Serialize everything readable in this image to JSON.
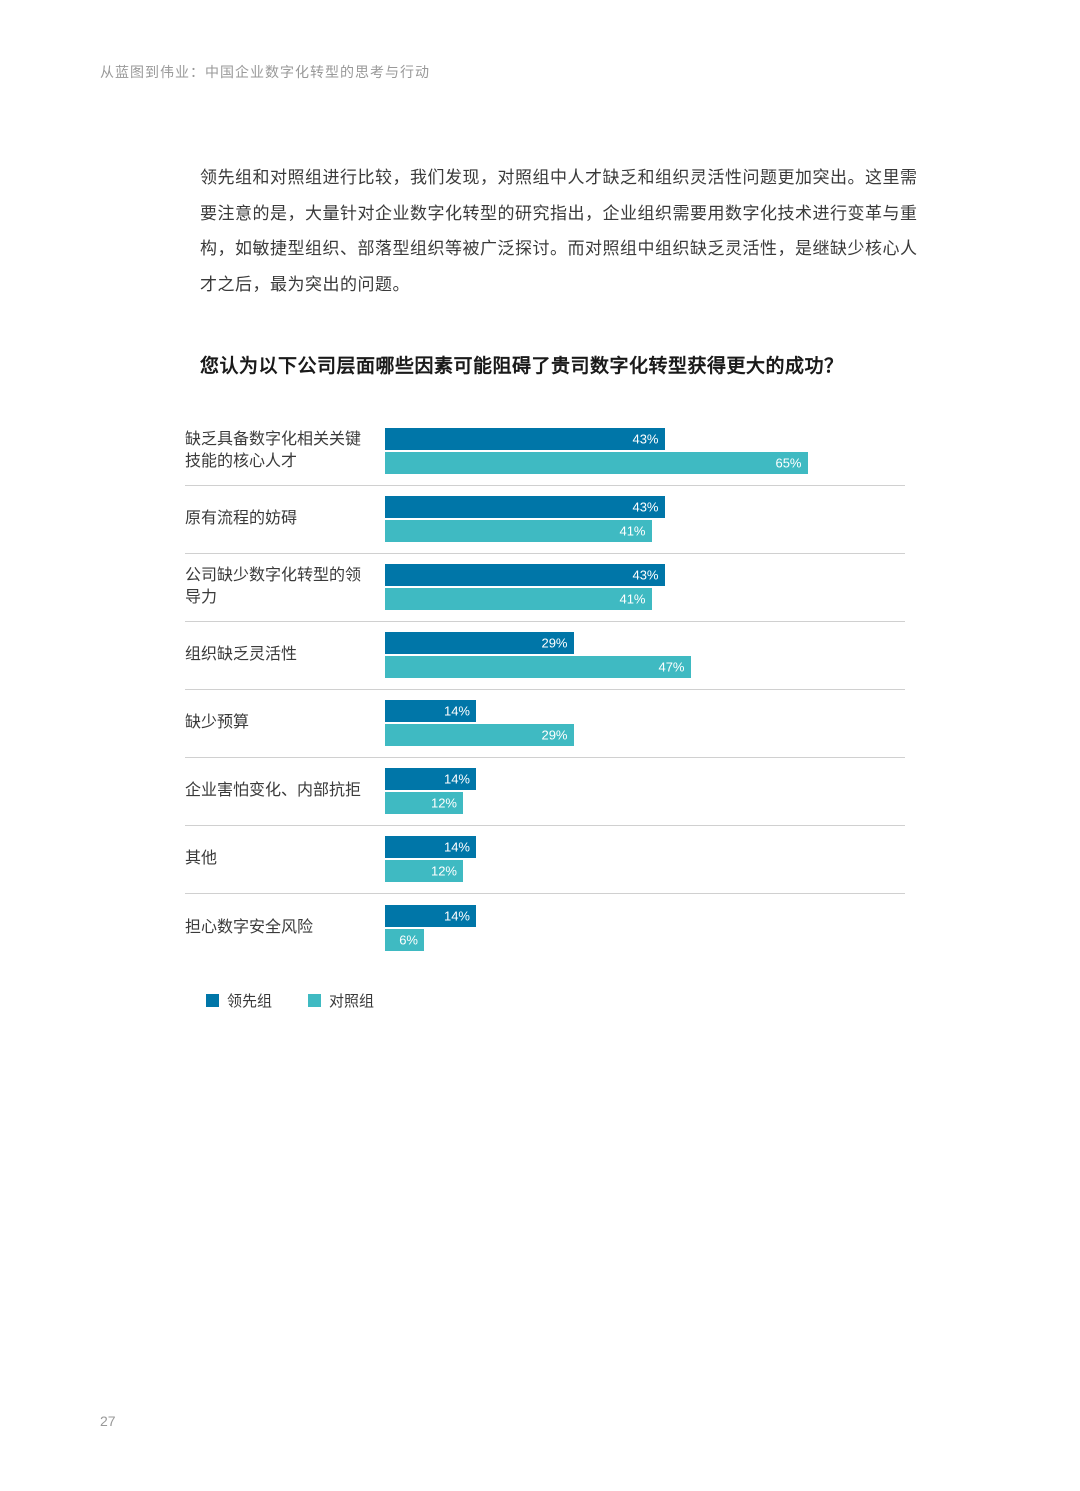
{
  "header": "从蓝图到伟业：中国企业数字化转型的思考与行动",
  "paragraph": "领先组和对照组进行比较，我们发现，对照组中人才缺乏和组织灵活性问题更加突出。这里需要注意的是，大量针对企业数字化转型的研究指出，企业组织需要用数字化技术进行变革与重构，如敏捷型组织、部落型组织等被广泛探讨。而对照组中组织缺乏灵活性，是继缺少核心人才之后，最为突出的问题。",
  "chart": {
    "type": "bar",
    "title": "您认为以下公司层面哪些因素可能阻碍了贵司数字化转型获得更大的成功？",
    "max_value": 80,
    "series": [
      {
        "name": "领先组",
        "color": "#0076a8"
      },
      {
        "name": "对照组",
        "color": "#3fbac2"
      }
    ],
    "rows": [
      {
        "label": "缺乏具备数字化相关关键技能的核心人才",
        "values": [
          43,
          65
        ]
      },
      {
        "label": "原有流程的妨碍",
        "values": [
          43,
          41
        ]
      },
      {
        "label": "公司缺少数字化转型的领导力",
        "values": [
          43,
          41
        ]
      },
      {
        "label": "组织缺乏灵活性",
        "values": [
          29,
          47
        ]
      },
      {
        "label": "缺少预算",
        "values": [
          14,
          29
        ]
      },
      {
        "label": "企业害怕变化、内部抗拒",
        "values": [
          14,
          12
        ]
      },
      {
        "label": "其他",
        "values": [
          14,
          12
        ]
      },
      {
        "label": "担心数字安全风险",
        "values": [
          14,
          6
        ]
      }
    ],
    "legend": [
      "领先组",
      "对照组"
    ]
  },
  "page_number": "27"
}
